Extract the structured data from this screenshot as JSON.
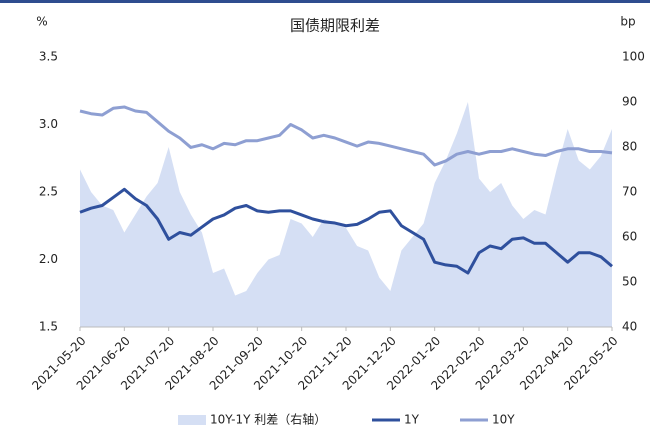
{
  "chart_data": {
    "type": "line",
    "title": "国债期限利差",
    "y_label": "%",
    "y2_label": "bp",
    "categories": [
      "2021-05-20",
      null,
      null,
      null,
      "2021-06-20",
      null,
      null,
      null,
      "2021-07-20",
      null,
      null,
      null,
      "2021-08-20",
      null,
      null,
      null,
      "2021-09-20",
      null,
      null,
      null,
      "2021-10-20",
      null,
      null,
      null,
      "2021-11-20",
      null,
      null,
      null,
      "2021-12-20",
      null,
      null,
      null,
      "2022-01-20",
      null,
      null,
      null,
      "2022-02-20",
      null,
      null,
      null,
      "2022-03-20",
      null,
      null,
      null,
      "2022-04-20",
      null,
      null,
      null,
      "2022-05-20"
    ],
    "series": [
      {
        "name": "10Y-1Y 利差（右轴）",
        "type": "area",
        "axis": "y2",
        "color": "#d5dff4",
        "values": [
          75,
          70,
          67,
          66,
          61,
          65,
          69,
          72,
          80,
          70,
          65,
          61,
          52,
          53,
          47,
          48,
          52,
          55,
          56,
          64,
          63,
          60,
          64,
          63,
          62,
          58,
          57,
          51,
          48,
          57,
          60,
          63,
          72,
          77,
          83,
          90,
          73,
          70,
          72,
          67,
          64,
          66,
          65,
          75,
          84,
          77,
          75,
          78,
          84
        ]
      },
      {
        "name": "1Y",
        "type": "line",
        "color": "#2f509d",
        "values": [
          2.35,
          2.38,
          2.4,
          2.46,
          2.52,
          2.45,
          2.4,
          2.3,
          2.15,
          2.2,
          2.18,
          2.24,
          2.3,
          2.33,
          2.38,
          2.4,
          2.36,
          2.35,
          2.36,
          2.36,
          2.33,
          2.3,
          2.28,
          2.27,
          2.25,
          2.26,
          2.3,
          2.35,
          2.36,
          2.25,
          2.2,
          2.15,
          1.98,
          1.96,
          1.95,
          1.9,
          2.05,
          2.1,
          2.08,
          2.15,
          2.16,
          2.12,
          2.12,
          2.05,
          1.98,
          2.05,
          2.05,
          2.02,
          1.95
        ]
      },
      {
        "name": "10Y",
        "type": "line",
        "color": "#8e9fd2",
        "values": [
          3.1,
          3.08,
          3.07,
          3.12,
          3.13,
          3.1,
          3.09,
          3.02,
          2.95,
          2.9,
          2.83,
          2.85,
          2.82,
          2.86,
          2.85,
          2.88,
          2.88,
          2.9,
          2.92,
          3.0,
          2.96,
          2.9,
          2.92,
          2.9,
          2.87,
          2.84,
          2.87,
          2.86,
          2.84,
          2.82,
          2.8,
          2.78,
          2.7,
          2.73,
          2.78,
          2.8,
          2.78,
          2.8,
          2.8,
          2.82,
          2.8,
          2.78,
          2.77,
          2.8,
          2.82,
          2.82,
          2.8,
          2.8,
          2.79
        ]
      }
    ],
    "ylim": [
      1.5,
      3.5
    ],
    "yticks": [
      1.5,
      {
        "value": 2,
        "label": "2.0"
      },
      2.5,
      {
        "value": 3,
        "label": "3.0"
      },
      3.5
    ],
    "y2lim": [
      40,
      100
    ],
    "y2ticks": [
      40,
      50,
      60,
      70,
      80,
      90,
      100
    ],
    "grid": false,
    "legend": "bottom"
  }
}
